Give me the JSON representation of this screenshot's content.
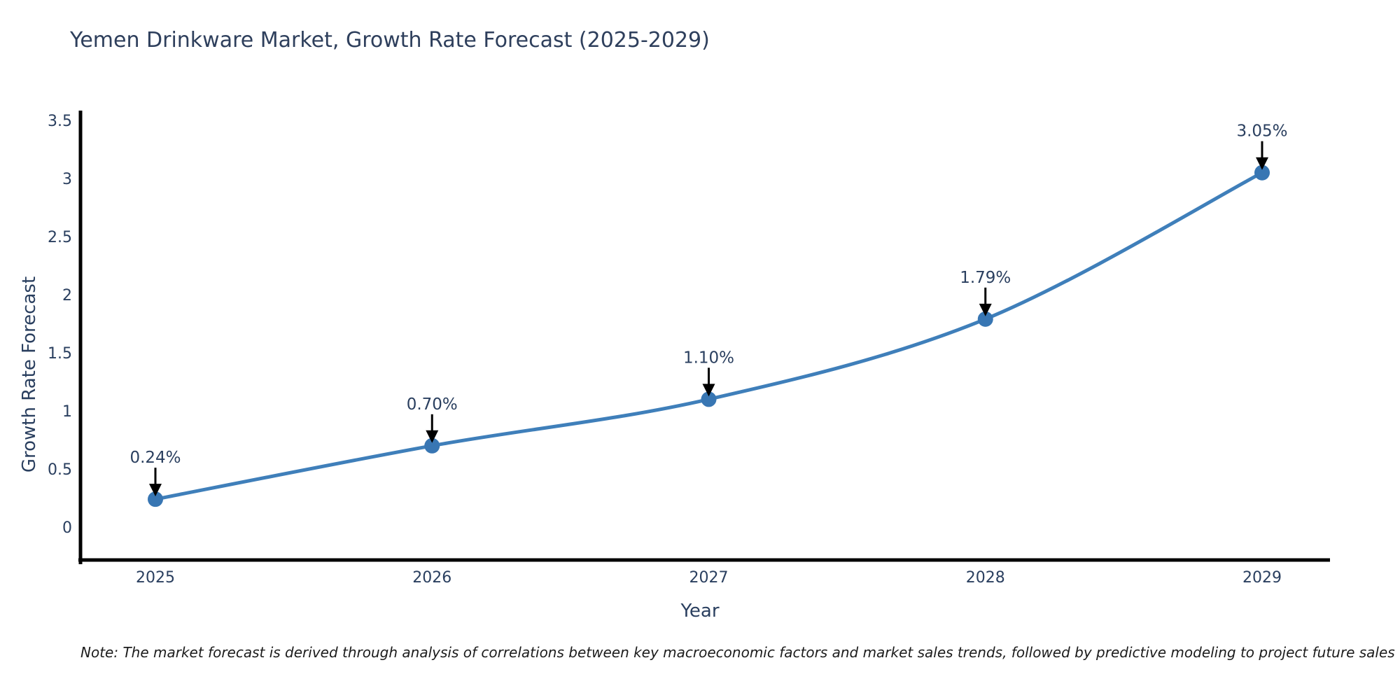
{
  "title": "Yemen Drinkware Market, Growth Rate Forecast (2025-2029)",
  "note": "Note: The market forecast is derived through analysis of correlations between key macroeconomic factors and market sales trends, followed by predictive modeling to project future sales",
  "chart_data": {
    "type": "line",
    "title": "Yemen Drinkware Market, Growth Rate Forecast (2025-2029)",
    "x": [
      "2025",
      "2026",
      "2027",
      "2028",
      "2029"
    ],
    "series": [
      {
        "name": "Growth Rate Forecast",
        "values": [
          0.24,
          0.7,
          1.1,
          1.79,
          3.05
        ]
      }
    ],
    "point_labels": [
      "0.24%",
      "0.70%",
      "1.10%",
      "1.79%",
      "3.05%"
    ],
    "xlabel": "Year",
    "ylabel": "Growth Rate Forecast",
    "yticks": [
      0,
      0.5,
      1,
      1.5,
      2,
      2.5,
      3,
      3.5
    ],
    "ylim": [
      -0.3,
      3.55
    ],
    "line_shape": "spline",
    "grid": false,
    "legend_position": "none",
    "colors": {
      "line": "#3f7fba",
      "marker": "#3876b3",
      "axis": "#000000",
      "text": "#2a3f5f",
      "annotation_arrow": "#000000"
    }
  }
}
